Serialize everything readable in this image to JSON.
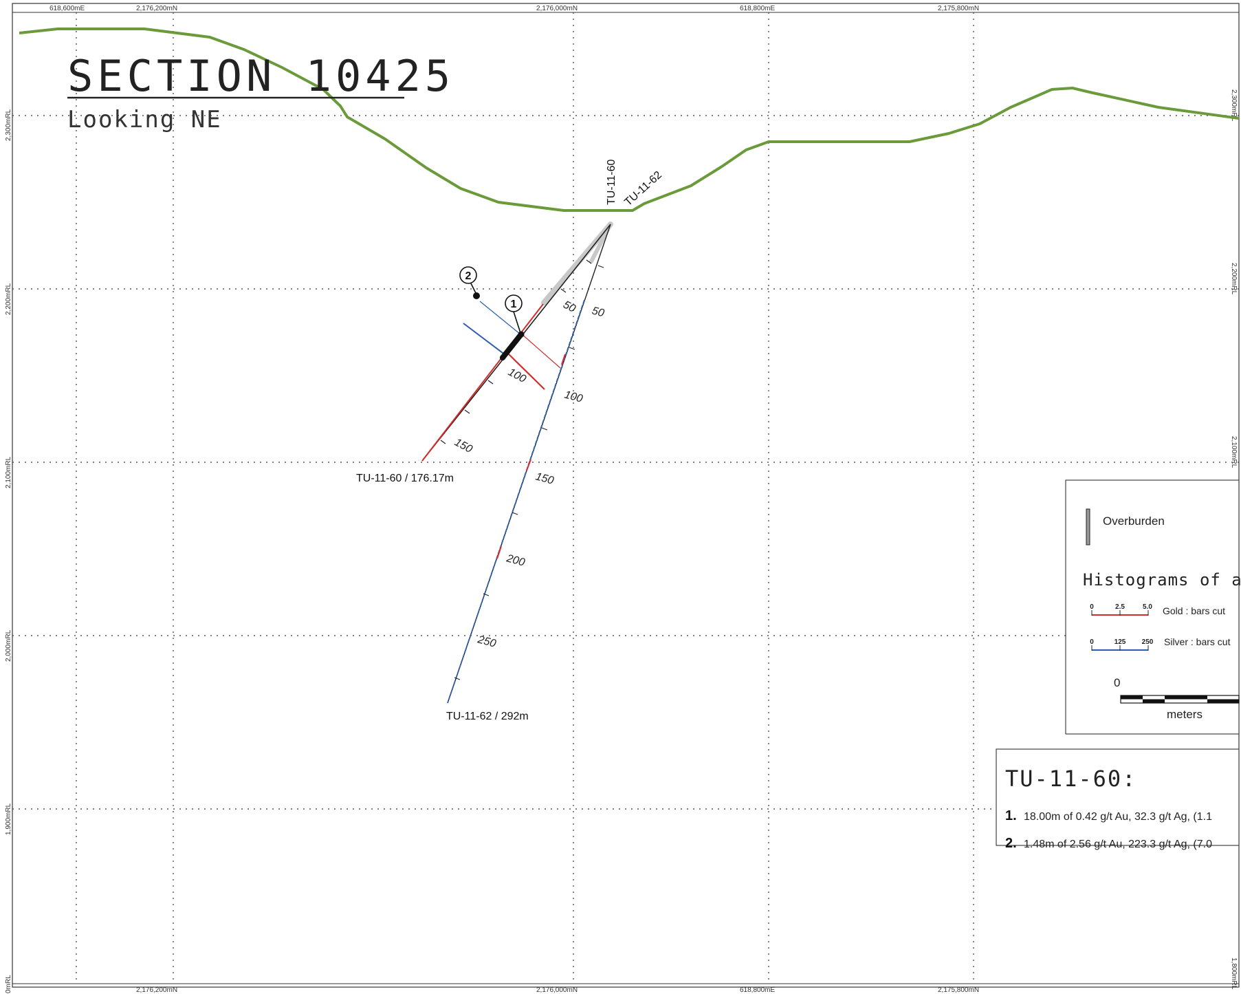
{
  "title": {
    "main": "SECTION 10425",
    "sub": "Looking NE"
  },
  "grid": {
    "top_labels": [
      "618,600mE",
      "2,176,200mN",
      "2,176,000mN",
      "618,800mE",
      "2,175,800mN"
    ],
    "bottom_labels": [
      "2,176,200mN",
      "2,176,000mN",
      "618,800mE",
      "2,175,800mN"
    ],
    "left_labels": [
      "2,300mRL",
      "2,200mRL",
      "2,100mRL",
      "2,000mRL",
      "1,900mRL",
      "0mRL"
    ],
    "right_labels": [
      "2,300mRL",
      "2,200mRL",
      "2,100mRL",
      "1,800mRL"
    ]
  },
  "drillholes": [
    {
      "name": "TU-11-60",
      "end_label": "TU-11-60 / 176.17m",
      "depth_labels": [
        "50",
        "100",
        "150"
      ]
    },
    {
      "name": "TU-11-62",
      "end_label": "TU-11-62 / 292m",
      "depth_labels": [
        "50",
        "100",
        "150",
        "200",
        "250"
      ]
    }
  ],
  "markers": [
    "1",
    "2"
  ],
  "legend": {
    "overburden_label": "Overburden",
    "histograms_heading": "Histograms of as",
    "gold": {
      "ticks": [
        "0",
        "2.5",
        "5.0"
      ],
      "label": "Gold : bars cut",
      "color": "#d62b2b"
    },
    "silver": {
      "ticks": [
        "0",
        "125",
        "250"
      ],
      "label": "Silver : bars cut",
      "color": "#2a5db0"
    },
    "scale_zero": "0",
    "scale_unit": "meters"
  },
  "results": {
    "title": "TU-11-60:",
    "items": [
      {
        "num": "1.",
        "text": "18.00m of 0.42 g/t Au, 32.3 g/t Ag, (1.1"
      },
      {
        "num": "2.",
        "text": "1.48m of 2.56 g/t Au, 223.3 g/t Ag, (7.0"
      }
    ]
  },
  "colors": {
    "topography": "#6a9a3a",
    "gold": "#d62b2b",
    "silver": "#2a5db0",
    "grid": "#555555"
  }
}
